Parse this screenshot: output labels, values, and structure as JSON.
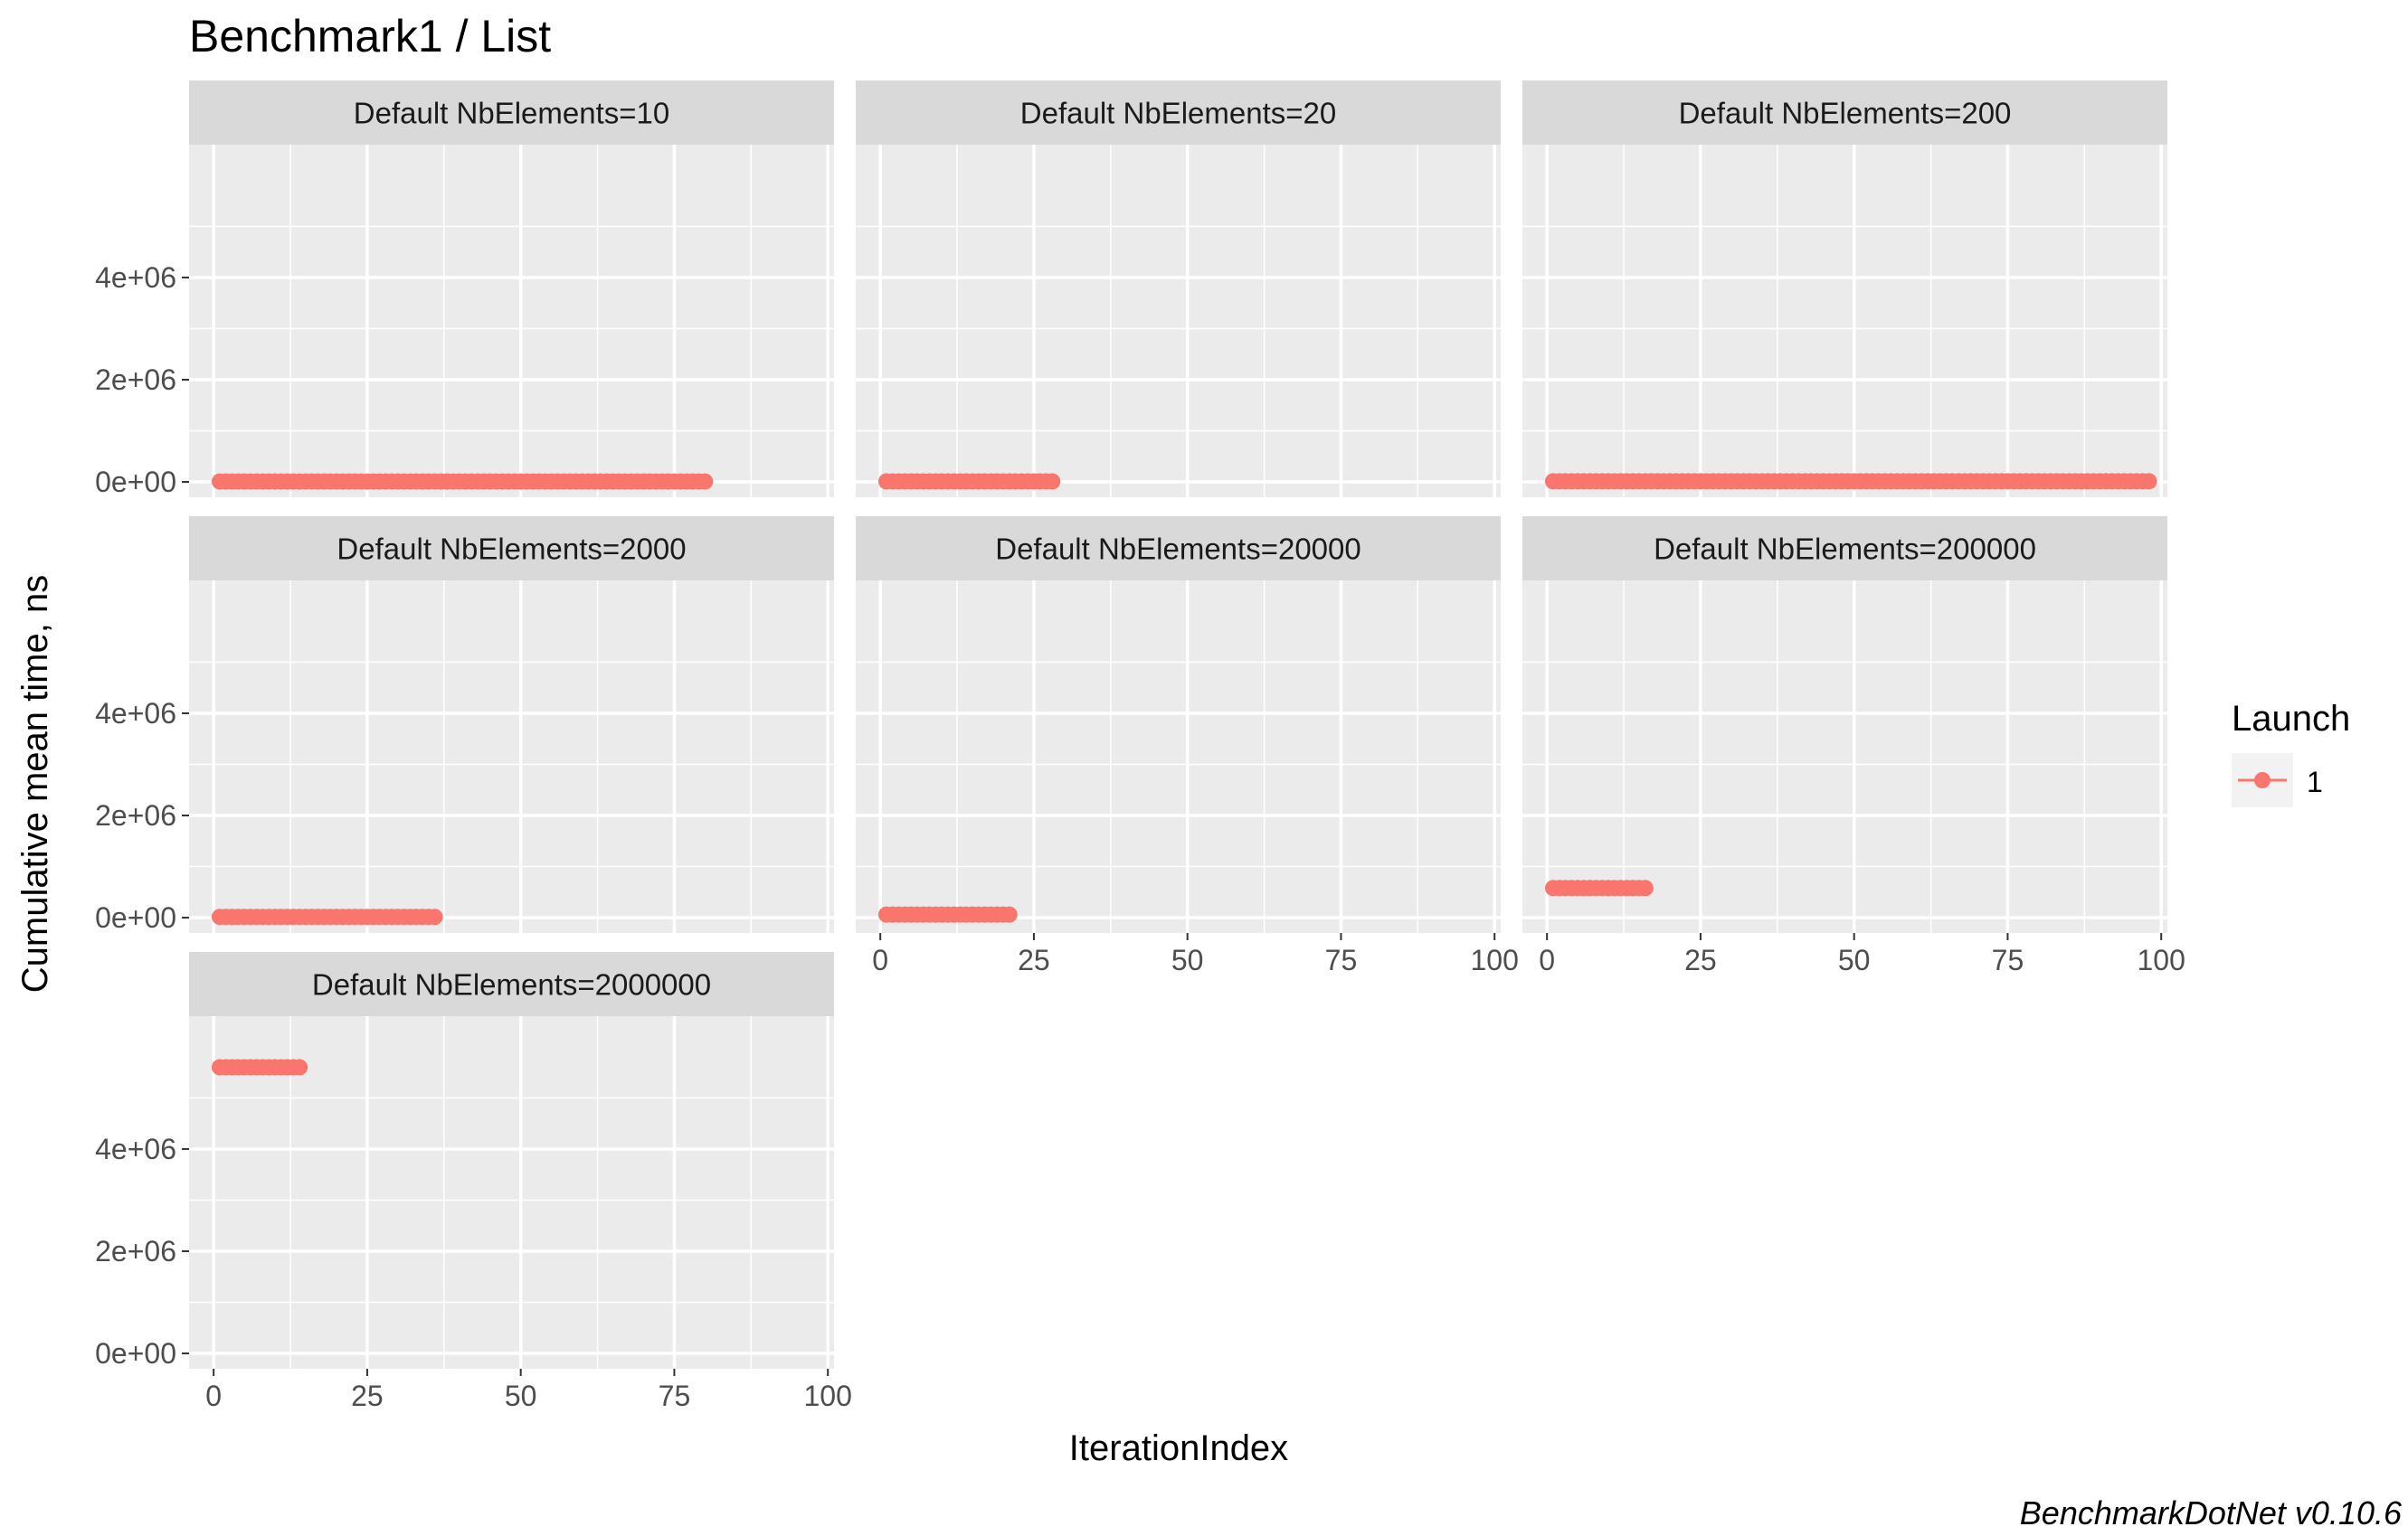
{
  "chart_data": {
    "type": "scatter",
    "title": "Benchmark1 / List",
    "xlabel": "IterationIndex",
    "ylabel": "Cumulative mean time, ns",
    "xlim": [
      -4,
      101
    ],
    "ylim": [
      -300000,
      6600000
    ],
    "x_ticks": [
      0,
      25,
      50,
      75,
      100
    ],
    "x_tick_labels": [
      "0",
      "25",
      "50",
      "75",
      "100"
    ],
    "y_ticks": [
      0,
      2000000,
      4000000
    ],
    "y_tick_labels": [
      "0e+00",
      "2e+06",
      "4e+06"
    ],
    "grid": true,
    "legend": {
      "title": "Launch",
      "position": "right",
      "entries": [
        {
          "label": "1",
          "color": "#F8766D"
        }
      ]
    },
    "colors": {
      "series": "#F8766D",
      "panel_bg": "#EBEBEB",
      "strip_bg": "#D9D9D9",
      "grid": "#FFFFFF"
    },
    "facet_layout": {
      "rows": 3,
      "cols": 3,
      "wrap": true
    },
    "facets": [
      {
        "label": "Default NbElements=10",
        "series": [
          {
            "name": "1",
            "x_from": 1,
            "x_to": 80,
            "y": 8000
          }
        ]
      },
      {
        "label": "Default NbElements=20",
        "series": [
          {
            "name": "1",
            "x_from": 1,
            "x_to": 28,
            "y": 10000
          }
        ]
      },
      {
        "label": "Default NbElements=200",
        "series": [
          {
            "name": "1",
            "x_from": 1,
            "x_to": 98,
            "y": 12000
          }
        ]
      },
      {
        "label": "Default NbElements=2000",
        "series": [
          {
            "name": "1",
            "x_from": 1,
            "x_to": 36,
            "y": 15000
          }
        ]
      },
      {
        "label": "Default NbElements=20000",
        "series": [
          {
            "name": "1",
            "x_from": 1,
            "x_to": 21,
            "y": 60000
          }
        ]
      },
      {
        "label": "Default NbElements=200000",
        "series": [
          {
            "name": "1",
            "x_from": 1,
            "x_to": 16,
            "y": 580000
          }
        ]
      },
      {
        "label": "Default NbElements=2000000",
        "series": [
          {
            "name": "1",
            "x_from": 1,
            "x_to": 14,
            "y": 5600000
          }
        ]
      }
    ]
  },
  "footer": {
    "caption": "BenchmarkDotNet v0.10.6"
  }
}
